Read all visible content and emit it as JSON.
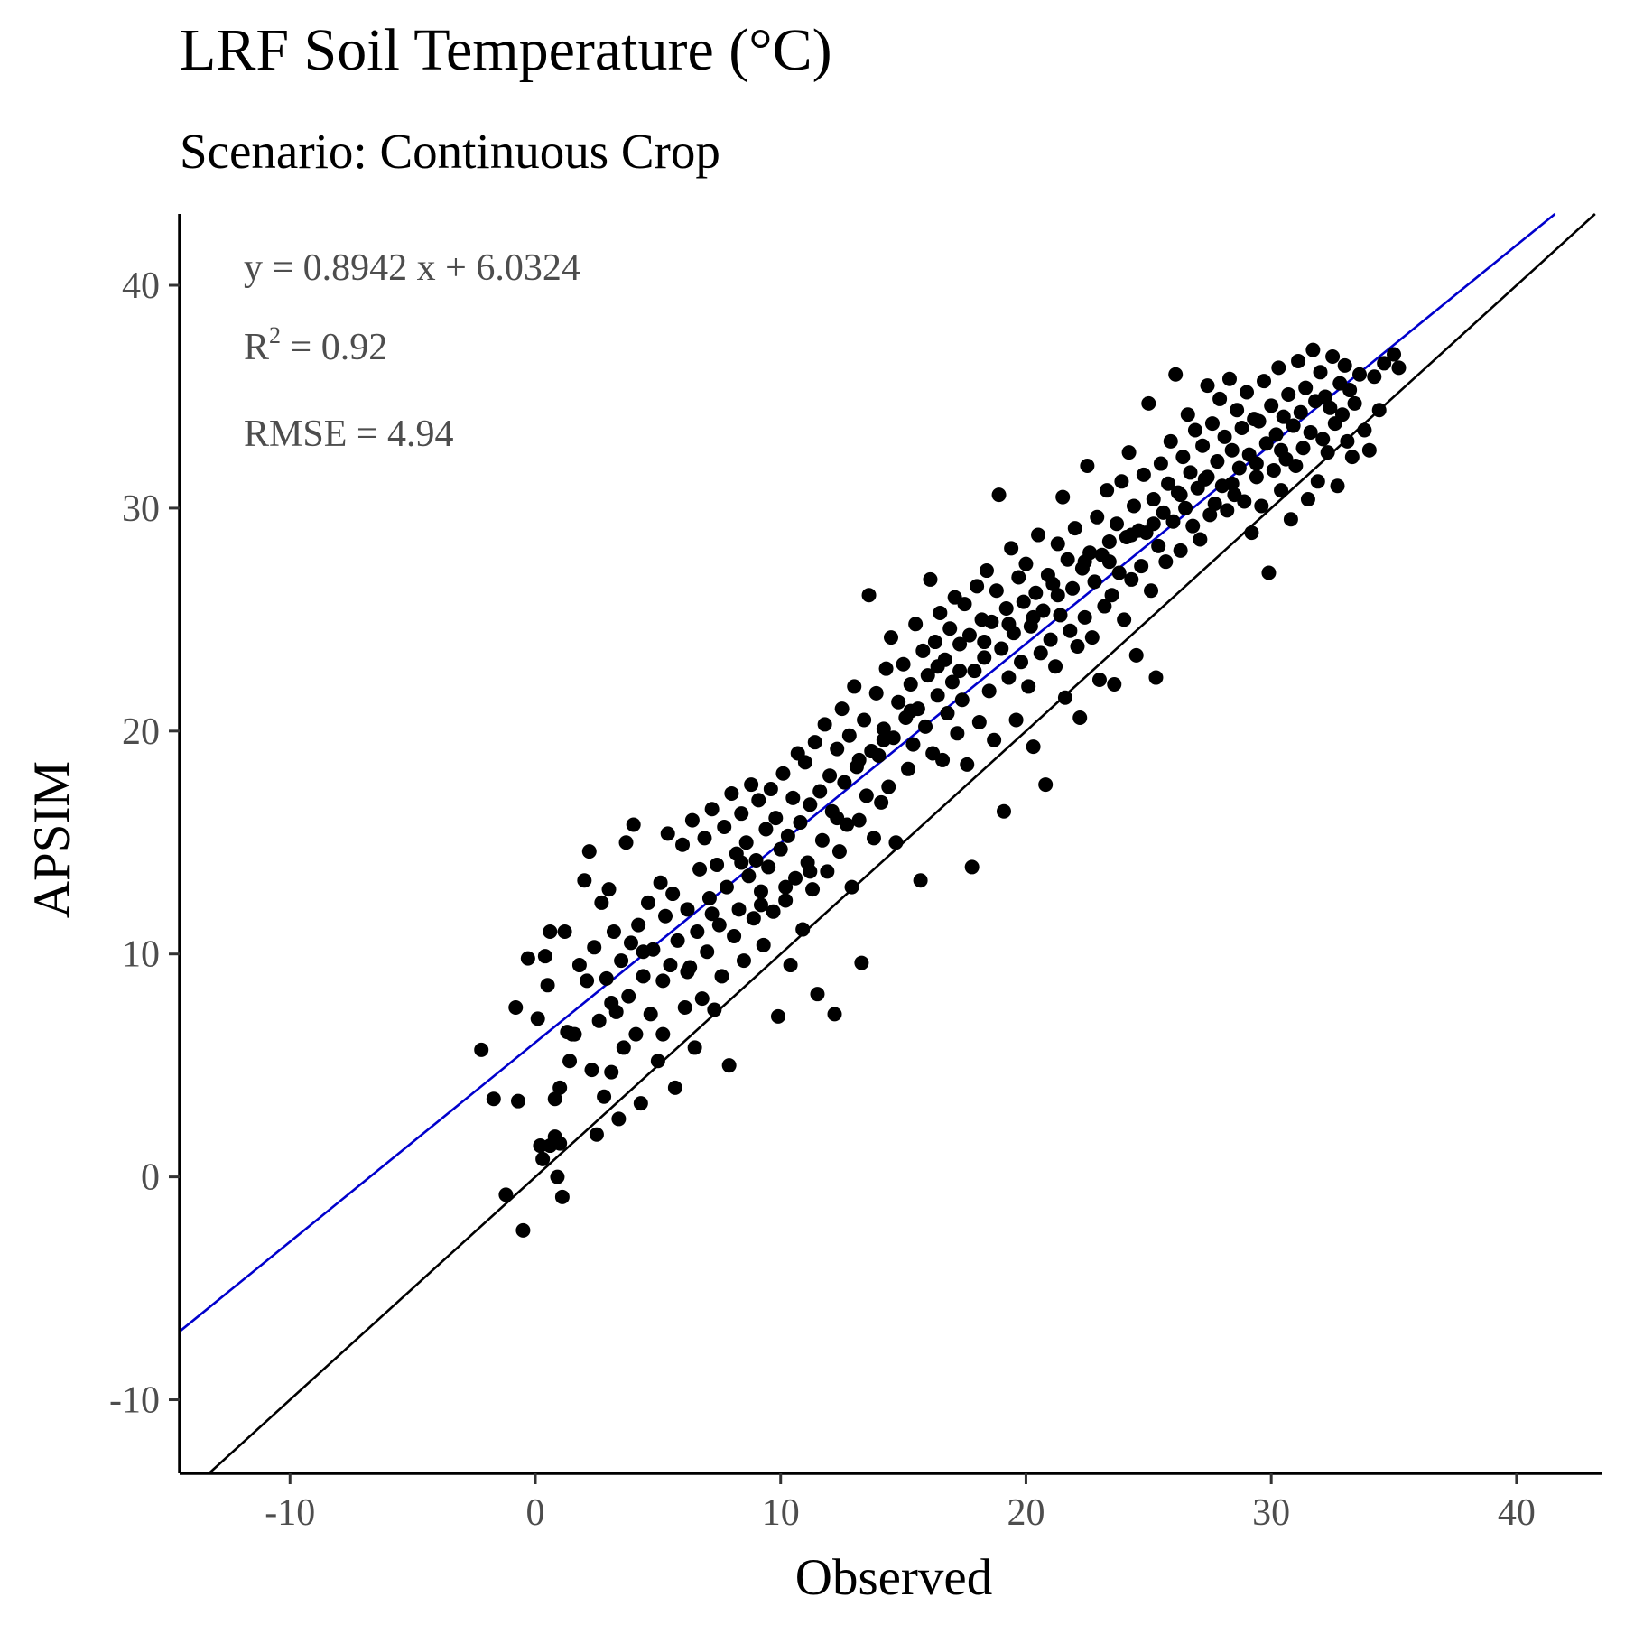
{
  "chart_data": {
    "type": "scatter",
    "title": "LRF Soil Temperature (°C)",
    "subtitle": "Scenario: Continuous Crop",
    "xlabel": "Observed",
    "ylabel": "APSIM",
    "xlim": [
      -14.5,
      43.5
    ],
    "ylim": [
      -13.3,
      43.2
    ],
    "x_ticks": [
      -10,
      0,
      10,
      20,
      30,
      40
    ],
    "y_ticks": [
      -10,
      0,
      10,
      20,
      30,
      40
    ],
    "annotations": {
      "equation": "y = 0.8942 x + 6.0324",
      "r2_label": "R",
      "r2_sup": "2",
      "r2_value": " = 0.92",
      "rmse": "RMSE = 4.94"
    },
    "fit_line": {
      "slope": 0.8942,
      "intercept": 6.0324,
      "color": "#0000cc"
    },
    "one_to_one_line": {
      "slope": 1,
      "intercept": 0,
      "color": "#000000"
    },
    "point_color": "#000000",
    "points": [
      [
        -2.2,
        5.7
      ],
      [
        -1.7,
        3.5
      ],
      [
        -1.2,
        -0.8
      ],
      [
        -0.8,
        7.6
      ],
      [
        -0.7,
        3.4
      ],
      [
        -0.5,
        -2.4
      ],
      [
        -0.3,
        9.8
      ],
      [
        0.1,
        7.1
      ],
      [
        0.2,
        1.4
      ],
      [
        0.3,
        0.8
      ],
      [
        0.4,
        9.9
      ],
      [
        0.5,
        8.6
      ],
      [
        0.6,
        11.0
      ],
      [
        0.8,
        1.8
      ],
      [
        0.8,
        3.5
      ],
      [
        0.9,
        0.0
      ],
      [
        1.0,
        4.0
      ],
      [
        1.0,
        1.5
      ],
      [
        1.1,
        -0.9
      ],
      [
        1.2,
        11.0
      ],
      [
        1.3,
        6.5
      ],
      [
        1.4,
        5.2
      ],
      [
        1.6,
        6.4
      ],
      [
        1.8,
        9.5
      ],
      [
        2.0,
        13.3
      ],
      [
        2.1,
        8.8
      ],
      [
        2.2,
        14.6
      ],
      [
        2.3,
        4.8
      ],
      [
        2.4,
        10.3
      ],
      [
        2.5,
        1.9
      ],
      [
        2.6,
        7.0
      ],
      [
        2.7,
        12.3
      ],
      [
        2.8,
        3.6
      ],
      [
        2.9,
        8.9
      ],
      [
        3.0,
        12.9
      ],
      [
        3.1,
        4.7
      ],
      [
        3.2,
        11.0
      ],
      [
        3.3,
        7.4
      ],
      [
        3.4,
        2.6
      ],
      [
        3.5,
        9.7
      ],
      [
        3.6,
        5.8
      ],
      [
        3.7,
        15.0
      ],
      [
        3.8,
        8.1
      ],
      [
        3.9,
        10.5
      ],
      [
        4.0,
        15.8
      ],
      [
        4.1,
        6.4
      ],
      [
        4.2,
        11.3
      ],
      [
        4.3,
        3.3
      ],
      [
        4.4,
        9.0
      ],
      [
        4.6,
        12.3
      ],
      [
        4.7,
        7.3
      ],
      [
        4.8,
        10.2
      ],
      [
        5.0,
        5.2
      ],
      [
        5.1,
        13.2
      ],
      [
        5.2,
        8.8
      ],
      [
        5.3,
        11.7
      ],
      [
        5.4,
        15.4
      ],
      [
        5.5,
        9.5
      ],
      [
        5.6,
        12.7
      ],
      [
        5.7,
        4.0
      ],
      [
        5.8,
        10.6
      ],
      [
        6.0,
        14.9
      ],
      [
        6.1,
        7.6
      ],
      [
        6.2,
        12.0
      ],
      [
        6.3,
        9.4
      ],
      [
        6.4,
        16.0
      ],
      [
        6.5,
        5.8
      ],
      [
        6.6,
        11.0
      ],
      [
        6.7,
        13.8
      ],
      [
        6.8,
        8.0
      ],
      [
        6.9,
        15.2
      ],
      [
        7.0,
        10.1
      ],
      [
        7.1,
        12.5
      ],
      [
        7.2,
        16.5
      ],
      [
        7.3,
        7.5
      ],
      [
        7.4,
        14.0
      ],
      [
        7.5,
        11.3
      ],
      [
        7.6,
        9.0
      ],
      [
        7.7,
        15.7
      ],
      [
        7.8,
        13.0
      ],
      [
        7.9,
        5.0
      ],
      [
        8.0,
        17.2
      ],
      [
        8.1,
        10.8
      ],
      [
        8.2,
        14.5
      ],
      [
        8.3,
        12.0
      ],
      [
        8.4,
        16.3
      ],
      [
        8.5,
        9.7
      ],
      [
        8.6,
        15.0
      ],
      [
        8.7,
        13.5
      ],
      [
        8.8,
        17.6
      ],
      [
        8.9,
        11.6
      ],
      [
        9.0,
        14.2
      ],
      [
        9.1,
        16.9
      ],
      [
        9.2,
        12.8
      ],
      [
        9.3,
        10.4
      ],
      [
        9.4,
        15.6
      ],
      [
        9.5,
        13.9
      ],
      [
        9.6,
        17.4
      ],
      [
        9.7,
        11.9
      ],
      [
        9.8,
        16.1
      ],
      [
        9.9,
        7.2
      ],
      [
        10.0,
        14.7
      ],
      [
        10.1,
        18.1
      ],
      [
        10.2,
        12.4
      ],
      [
        10.3,
        15.3
      ],
      [
        10.4,
        9.5
      ],
      [
        10.5,
        17.0
      ],
      [
        10.6,
        13.4
      ],
      [
        10.7,
        19.0
      ],
      [
        10.8,
        15.9
      ],
      [
        10.9,
        11.1
      ],
      [
        11.0,
        18.6
      ],
      [
        11.1,
        14.1
      ],
      [
        11.2,
        16.7
      ],
      [
        11.3,
        12.9
      ],
      [
        11.4,
        19.5
      ],
      [
        11.5,
        8.2
      ],
      [
        11.6,
        17.3
      ],
      [
        11.7,
        15.1
      ],
      [
        11.8,
        20.3
      ],
      [
        11.9,
        13.7
      ],
      [
        12.0,
        18.0
      ],
      [
        12.1,
        16.4
      ],
      [
        12.2,
        7.3
      ],
      [
        12.3,
        19.2
      ],
      [
        12.4,
        14.6
      ],
      [
        12.5,
        21.0
      ],
      [
        12.6,
        17.7
      ],
      [
        12.7,
        15.8
      ],
      [
        12.8,
        19.8
      ],
      [
        12.9,
        13.0
      ],
      [
        13.0,
        22.0
      ],
      [
        13.1,
        18.4
      ],
      [
        13.2,
        16.0
      ],
      [
        13.3,
        9.6
      ],
      [
        13.4,
        20.5
      ],
      [
        13.5,
        17.1
      ],
      [
        13.6,
        26.1
      ],
      [
        13.7,
        19.1
      ],
      [
        13.8,
        15.2
      ],
      [
        13.9,
        21.7
      ],
      [
        14.0,
        18.9
      ],
      [
        14.1,
        16.8
      ],
      [
        14.2,
        20.1
      ],
      [
        14.3,
        22.8
      ],
      [
        14.4,
        17.5
      ],
      [
        14.5,
        24.2
      ],
      [
        14.6,
        19.7
      ],
      [
        14.7,
        15.0
      ],
      [
        14.8,
        21.3
      ],
      [
        15.0,
        23.0
      ],
      [
        15.1,
        20.6
      ],
      [
        15.2,
        18.3
      ],
      [
        15.3,
        22.1
      ],
      [
        15.4,
        19.4
      ],
      [
        15.5,
        24.8
      ],
      [
        15.6,
        21.0
      ],
      [
        15.7,
        13.3
      ],
      [
        15.8,
        23.6
      ],
      [
        15.9,
        20.2
      ],
      [
        16.0,
        22.5
      ],
      [
        16.1,
        26.8
      ],
      [
        16.2,
        19.0
      ],
      [
        16.3,
        24.0
      ],
      [
        16.4,
        21.6
      ],
      [
        16.5,
        25.3
      ],
      [
        16.6,
        18.7
      ],
      [
        16.7,
        23.2
      ],
      [
        16.8,
        20.8
      ],
      [
        16.9,
        24.6
      ],
      [
        17.0,
        22.2
      ],
      [
        17.1,
        26.0
      ],
      [
        17.2,
        19.9
      ],
      [
        17.3,
        23.9
      ],
      [
        17.4,
        21.4
      ],
      [
        17.5,
        25.7
      ],
      [
        17.6,
        18.5
      ],
      [
        17.7,
        24.3
      ],
      [
        17.8,
        13.9
      ],
      [
        17.9,
        22.7
      ],
      [
        18.0,
        26.5
      ],
      [
        18.1,
        20.4
      ],
      [
        18.2,
        25.0
      ],
      [
        18.3,
        23.3
      ],
      [
        18.4,
        27.2
      ],
      [
        18.5,
        21.8
      ],
      [
        18.6,
        24.9
      ],
      [
        18.7,
        19.6
      ],
      [
        18.8,
        26.3
      ],
      [
        18.9,
        30.6
      ],
      [
        19.0,
        23.7
      ],
      [
        19.1,
        16.4
      ],
      [
        19.2,
        25.5
      ],
      [
        19.3,
        22.4
      ],
      [
        19.4,
        28.2
      ],
      [
        19.5,
        24.4
      ],
      [
        19.6,
        20.5
      ],
      [
        19.7,
        26.9
      ],
      [
        19.8,
        23.1
      ],
      [
        19.9,
        25.8
      ],
      [
        20.0,
        27.5
      ],
      [
        20.1,
        22.0
      ],
      [
        20.2,
        24.7
      ],
      [
        20.3,
        19.3
      ],
      [
        20.4,
        26.2
      ],
      [
        20.5,
        28.8
      ],
      [
        20.6,
        23.5
      ],
      [
        20.7,
        25.4
      ],
      [
        20.8,
        17.6
      ],
      [
        20.9,
        27.0
      ],
      [
        21.0,
        24.1
      ],
      [
        21.1,
        26.6
      ],
      [
        21.2,
        22.9
      ],
      [
        21.3,
        28.4
      ],
      [
        21.4,
        25.2
      ],
      [
        21.5,
        30.5
      ],
      [
        21.6,
        21.5
      ],
      [
        21.7,
        27.7
      ],
      [
        21.8,
        24.5
      ],
      [
        21.9,
        26.4
      ],
      [
        22.0,
        29.1
      ],
      [
        22.1,
        23.8
      ],
      [
        22.2,
        20.6
      ],
      [
        22.3,
        27.3
      ],
      [
        22.4,
        25.1
      ],
      [
        22.5,
        31.9
      ],
      [
        22.6,
        28.0
      ],
      [
        22.7,
        24.2
      ],
      [
        22.8,
        26.7
      ],
      [
        22.9,
        29.6
      ],
      [
        23.0,
        22.3
      ],
      [
        23.1,
        27.9
      ],
      [
        23.2,
        25.6
      ],
      [
        23.3,
        30.8
      ],
      [
        23.4,
        28.5
      ],
      [
        23.5,
        26.1
      ],
      [
        23.6,
        22.1
      ],
      [
        23.7,
        29.3
      ],
      [
        23.8,
        27.1
      ],
      [
        23.9,
        31.2
      ],
      [
        24.0,
        25.0
      ],
      [
        24.1,
        28.7
      ],
      [
        24.2,
        32.5
      ],
      [
        24.3,
        26.8
      ],
      [
        24.4,
        30.1
      ],
      [
        24.5,
        23.4
      ],
      [
        24.6,
        29.0
      ],
      [
        24.7,
        27.4
      ],
      [
        24.8,
        31.5
      ],
      [
        24.9,
        28.9
      ],
      [
        25.0,
        34.7
      ],
      [
        25.1,
        26.3
      ],
      [
        25.2,
        30.4
      ],
      [
        25.3,
        22.4
      ],
      [
        25.4,
        28.3
      ],
      [
        25.5,
        32.0
      ],
      [
        25.6,
        29.8
      ],
      [
        25.7,
        27.6
      ],
      [
        25.8,
        31.1
      ],
      [
        25.9,
        33.0
      ],
      [
        26.0,
        29.4
      ],
      [
        26.1,
        36.0
      ],
      [
        26.2,
        30.7
      ],
      [
        26.3,
        28.1
      ],
      [
        26.4,
        32.3
      ],
      [
        26.5,
        30.0
      ],
      [
        26.6,
        34.2
      ],
      [
        26.7,
        31.6
      ],
      [
        26.8,
        29.2
      ],
      [
        26.9,
        33.5
      ],
      [
        27.0,
        30.9
      ],
      [
        27.1,
        28.6
      ],
      [
        27.2,
        32.8
      ],
      [
        27.3,
        31.3
      ],
      [
        27.4,
        35.5
      ],
      [
        27.5,
        29.7
      ],
      [
        27.6,
        33.8
      ],
      [
        27.7,
        30.2
      ],
      [
        27.8,
        32.1
      ],
      [
        27.9,
        34.9
      ],
      [
        28.0,
        31.0
      ],
      [
        28.1,
        33.2
      ],
      [
        28.2,
        29.9
      ],
      [
        28.3,
        35.8
      ],
      [
        28.4,
        32.6
      ],
      [
        28.5,
        30.6
      ],
      [
        28.6,
        34.4
      ],
      [
        28.7,
        31.8
      ],
      [
        28.8,
        33.6
      ],
      [
        28.9,
        30.3
      ],
      [
        29.0,
        35.2
      ],
      [
        29.1,
        32.4
      ],
      [
        29.2,
        28.9
      ],
      [
        29.3,
        34.0
      ],
      [
        29.4,
        31.4
      ],
      [
        29.5,
        33.9
      ],
      [
        29.6,
        30.1
      ],
      [
        29.7,
        35.7
      ],
      [
        29.8,
        32.9
      ],
      [
        29.9,
        27.1
      ],
      [
        30.0,
        34.6
      ],
      [
        30.1,
        31.7
      ],
      [
        30.2,
        33.3
      ],
      [
        30.3,
        36.3
      ],
      [
        30.4,
        30.8
      ],
      [
        30.5,
        34.1
      ],
      [
        30.6,
        32.2
      ],
      [
        30.7,
        35.1
      ],
      [
        30.8,
        29.5
      ],
      [
        30.9,
        33.7
      ],
      [
        31.0,
        31.9
      ],
      [
        31.1,
        36.6
      ],
      [
        31.2,
        34.3
      ],
      [
        31.3,
        32.7
      ],
      [
        31.4,
        35.4
      ],
      [
        31.5,
        30.4
      ],
      [
        31.6,
        33.4
      ],
      [
        31.7,
        37.1
      ],
      [
        31.8,
        34.8
      ],
      [
        31.9,
        31.2
      ],
      [
        32.0,
        36.1
      ],
      [
        32.1,
        33.1
      ],
      [
        32.2,
        35.0
      ],
      [
        32.3,
        32.5
      ],
      [
        32.4,
        34.5
      ],
      [
        32.5,
        36.8
      ],
      [
        32.6,
        33.8
      ],
      [
        32.7,
        31.0
      ],
      [
        32.8,
        35.6
      ],
      [
        32.9,
        34.2
      ],
      [
        33.0,
        36.4
      ],
      [
        33.1,
        33.0
      ],
      [
        33.2,
        35.3
      ],
      [
        33.3,
        32.3
      ],
      [
        33.4,
        34.7
      ],
      [
        33.6,
        36.0
      ],
      [
        33.8,
        33.5
      ],
      [
        34.0,
        32.6
      ],
      [
        34.2,
        35.9
      ],
      [
        34.4,
        34.4
      ],
      [
        34.6,
        36.5
      ],
      [
        35.0,
        36.9
      ],
      [
        35.2,
        36.3
      ],
      [
        0.6,
        1.4
      ],
      [
        1.5,
        6.4
      ],
      [
        3.1,
        7.8
      ],
      [
        4.4,
        10.1
      ],
      [
        5.2,
        6.4
      ],
      [
        6.2,
        9.2
      ],
      [
        7.2,
        11.8
      ],
      [
        8.4,
        14.1
      ],
      [
        9.2,
        12.2
      ],
      [
        10.2,
        13.0
      ],
      [
        11.2,
        13.7
      ],
      [
        12.3,
        16.1
      ],
      [
        13.2,
        18.7
      ],
      [
        14.2,
        19.6
      ],
      [
        15.3,
        20.9
      ],
      [
        16.4,
        22.9
      ],
      [
        17.3,
        22.7
      ],
      [
        18.3,
        24.0
      ],
      [
        19.3,
        24.8
      ],
      [
        20.3,
        25.1
      ],
      [
        21.3,
        26.1
      ],
      [
        22.4,
        27.6
      ],
      [
        23.4,
        27.6
      ],
      [
        24.3,
        28.8
      ],
      [
        25.2,
        29.3
      ],
      [
        26.3,
        30.6
      ],
      [
        27.4,
        31.4
      ],
      [
        28.4,
        31.1
      ],
      [
        29.4,
        32.0
      ],
      [
        30.4,
        32.6
      ]
    ]
  }
}
